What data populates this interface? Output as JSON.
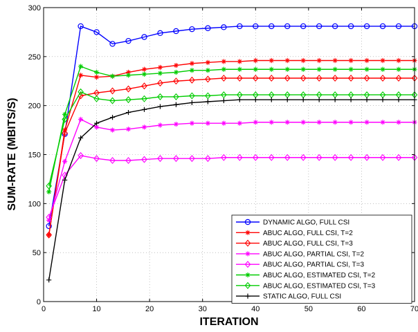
{
  "chart_data": {
    "type": "line",
    "title": "",
    "xlabel": "ITERATION",
    "ylabel": "SUM-RATE (MBITS/S)",
    "xlim": [
      0,
      70
    ],
    "ylim": [
      0,
      300
    ],
    "xticks": [
      0,
      10,
      20,
      30,
      40,
      50,
      60,
      70
    ],
    "yticks": [
      0,
      50,
      100,
      150,
      200,
      250,
      300
    ],
    "grid": true,
    "legend_position": "bottom-right",
    "x": [
      1,
      4,
      7,
      10,
      13,
      16,
      19,
      22,
      25,
      28,
      31,
      34,
      37,
      40,
      43,
      46,
      49,
      52,
      55,
      58,
      61,
      64,
      67,
      70
    ],
    "series": [
      {
        "name": "DYNAMIC ALGO, FULL CSI",
        "color": "#0000ff",
        "marker": "circle",
        "values": [
          77,
          171,
          281,
          275,
          263,
          266,
          270,
          274,
          276,
          278,
          279,
          280,
          281,
          281,
          281,
          281,
          281,
          281,
          281,
          281,
          281,
          281,
          281,
          281
        ]
      },
      {
        "name": "ABUC ALGO, FULL CSI, T=2",
        "color": "#ff0000",
        "marker": "star",
        "values": [
          68,
          175,
          231,
          229,
          230,
          234,
          237,
          239,
          241,
          243,
          244,
          245,
          245,
          246,
          246,
          246,
          246,
          246,
          246,
          246,
          246,
          246,
          246,
          246
        ]
      },
      {
        "name": "ABUC ALGO, FULL CSI, T=3",
        "color": "#ff0000",
        "marker": "diamond",
        "values": [
          68,
          172,
          210,
          213,
          215,
          217,
          220,
          223,
          225,
          226,
          227,
          228,
          228,
          228,
          228,
          228,
          228,
          228,
          228,
          228,
          228,
          228,
          228,
          228
        ]
      },
      {
        "name": "ABUC ALGO, PARTIAL CSI, T=2",
        "color": "#ff00ff",
        "marker": "star",
        "values": [
          83,
          143,
          186,
          178,
          175,
          176,
          178,
          180,
          181,
          182,
          182,
          182,
          182,
          183,
          183,
          183,
          183,
          183,
          183,
          183,
          183,
          183,
          183,
          183
        ]
      },
      {
        "name": "ABUC ALGO, PARTIAL CSI, T=3",
        "color": "#ff00ff",
        "marker": "diamond",
        "values": [
          86,
          129,
          149,
          146,
          144,
          144,
          145,
          146,
          146,
          146,
          146,
          147,
          147,
          147,
          147,
          147,
          147,
          147,
          147,
          147,
          147,
          147,
          147,
          147
        ]
      },
      {
        "name": "ABUC ALGO, ESTIMATED CSI, T=2",
        "color": "#00cc00",
        "marker": "star",
        "values": [
          112,
          191,
          240,
          234,
          230,
          231,
          232,
          233,
          234,
          236,
          236,
          237,
          237,
          237,
          237,
          237,
          237,
          237,
          237,
          237,
          237,
          237,
          237,
          237
        ]
      },
      {
        "name": "ABUC ALGO, ESTIMATED CSI, T=3",
        "color": "#00cc00",
        "marker": "diamond",
        "values": [
          118,
          186,
          214,
          207,
          205,
          206,
          207,
          209,
          209,
          210,
          210,
          211,
          211,
          211,
          211,
          211,
          211,
          211,
          211,
          211,
          211,
          211,
          211,
          211
        ]
      },
      {
        "name": "STATIC ALGO, FULL CSI",
        "color": "#000000",
        "marker": "plus",
        "values": [
          22,
          124,
          167,
          182,
          188,
          193,
          196,
          199,
          201,
          203,
          204,
          205,
          206,
          206,
          206,
          206,
          206,
          206,
          206,
          206,
          206,
          206,
          206,
          206
        ]
      }
    ]
  }
}
